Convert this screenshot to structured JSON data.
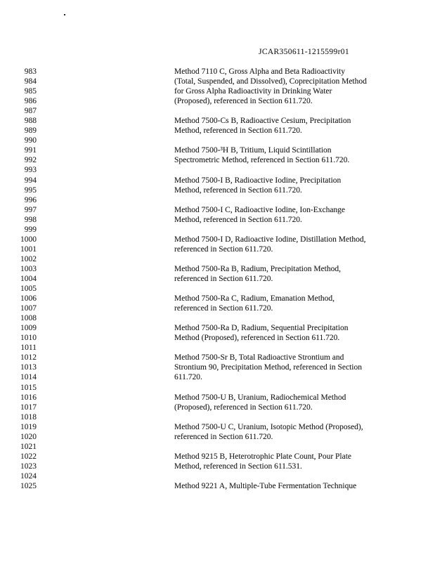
{
  "page": {
    "header": "JCAR350611-1215599r01",
    "lines": [
      {
        "num": "983",
        "text": "Method 7110 C, Gross Alpha and Beta Radioactivity"
      },
      {
        "num": "984",
        "text": "(Total, Suspended, and Dissolved), Coprecipitation Method"
      },
      {
        "num": "985",
        "text": "for Gross Alpha Radioactivity in Drinking Water"
      },
      {
        "num": "986",
        "text": "(Proposed), referenced in Section 611.720."
      },
      {
        "num": "987",
        "text": ""
      },
      {
        "num": "988",
        "text": "Method 7500-Cs B, Radioactive Cesium, Precipitation"
      },
      {
        "num": "989",
        "text": "Method, referenced in Section 611.720."
      },
      {
        "num": "990",
        "text": ""
      },
      {
        "num": "991",
        "text": "Method 7500-³H B, Tritium, Liquid Scintillation"
      },
      {
        "num": "992",
        "text": "Spectrometric Method, referenced in Section 611.720."
      },
      {
        "num": "993",
        "text": ""
      },
      {
        "num": "994",
        "text": "Method 7500-I B, Radioactive Iodine, Precipitation"
      },
      {
        "num": "995",
        "text": "Method, referenced in Section 611.720."
      },
      {
        "num": "996",
        "text": ""
      },
      {
        "num": "997",
        "text": "Method 7500-I C, Radioactive Iodine, Ion-Exchange"
      },
      {
        "num": "998",
        "text": "Method, referenced in Section 611.720."
      },
      {
        "num": "999",
        "text": ""
      },
      {
        "num": "1000",
        "text": "Method 7500-I D, Radioactive Iodine, Distillation Method,"
      },
      {
        "num": "1001",
        "text": "referenced in Section 611.720."
      },
      {
        "num": "1002",
        "text": ""
      },
      {
        "num": "1003",
        "text": "Method 7500-Ra B, Radium, Precipitation Method,"
      },
      {
        "num": "1004",
        "text": "referenced in Section 611.720."
      },
      {
        "num": "1005",
        "text": ""
      },
      {
        "num": "1006",
        "text": "Method 7500-Ra C, Radium, Emanation Method,"
      },
      {
        "num": "1007",
        "text": "referenced in Section 611.720."
      },
      {
        "num": "1008",
        "text": ""
      },
      {
        "num": "1009",
        "text": "Method 7500-Ra D, Radium, Sequential Precipitation"
      },
      {
        "num": "1010",
        "text": "Method (Proposed), referenced in Section 611.720."
      },
      {
        "num": "1011",
        "text": ""
      },
      {
        "num": "1012",
        "text": "Method 7500-Sr B, Total Radioactive Strontium and"
      },
      {
        "num": "1013",
        "text": "Strontium 90, Precipitation Method, referenced in Section"
      },
      {
        "num": "1014",
        "text": "611.720."
      },
      {
        "num": "1015",
        "text": ""
      },
      {
        "num": "1016",
        "text": "Method 7500-U B, Uranium, Radiochemical Method"
      },
      {
        "num": "1017",
        "text": "(Proposed), referenced in Section 611.720."
      },
      {
        "num": "1018",
        "text": ""
      },
      {
        "num": "1019",
        "text": "Method 7500-U C, Uranium, Isotopic Method (Proposed),"
      },
      {
        "num": "1020",
        "text": "referenced in Section 611.720."
      },
      {
        "num": "1021",
        "text": ""
      },
      {
        "num": "1022",
        "text": "Method 9215 B, Heterotrophic Plate Count, Pour Plate"
      },
      {
        "num": "1023",
        "text": "Method, referenced in Section 611.531."
      },
      {
        "num": "1024",
        "text": ""
      },
      {
        "num": "1025",
        "text": "Method 9221 A, Multiple-Tube Fermentation Technique"
      }
    ]
  }
}
